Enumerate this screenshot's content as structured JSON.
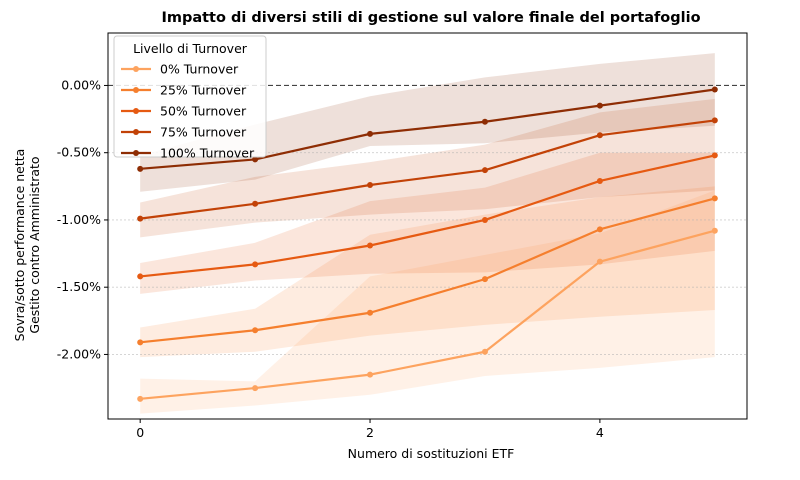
{
  "chart_data": {
    "type": "line",
    "title": "Impatto di diversi stili di gestione sul valore finale del portafoglio",
    "xlabel": "Numero di sostituzioni ETF",
    "ylabel_lines": [
      "Sovra/sotto performance netta",
      "Gestito contro Amministrato"
    ],
    "x": [
      0,
      1,
      2,
      3,
      4,
      5
    ],
    "xlim": [
      -0.28,
      5.28
    ],
    "ylim": [
      -2.48,
      0.39
    ],
    "xticks": [
      0,
      2,
      4
    ],
    "xtick_labels": [
      "0",
      "2",
      "4"
    ],
    "yticks": [
      0,
      -0.5,
      -1.0,
      -1.5,
      -2.0
    ],
    "ytick_labels": [
      "0.00%",
      "-0.50%",
      "-1.00%",
      "-1.50%",
      "-2.00%"
    ],
    "reference_line": 0,
    "legend": {
      "title": "Livello di Turnover",
      "position": "top-left"
    },
    "series": [
      {
        "name": "0% Turnover",
        "color": "#fda35f",
        "values": [
          -2.33,
          -2.25,
          -2.15,
          -1.98,
          -1.31,
          -1.08
        ],
        "lower": [
          -2.44,
          -2.38,
          -2.3,
          -2.16,
          -2.1,
          -2.02
        ],
        "upper": [
          -2.18,
          -2.2,
          -1.42,
          -1.26,
          -1.1,
          -0.78
        ]
      },
      {
        "name": "25% Turnover",
        "color": "#f57f2e",
        "values": [
          -1.91,
          -1.82,
          -1.69,
          -1.44,
          -1.07,
          -0.84
        ],
        "lower": [
          -2.02,
          -1.98,
          -1.86,
          -1.78,
          -1.72,
          -1.67
        ],
        "upper": [
          -1.8,
          -1.66,
          -1.11,
          -0.96,
          -0.83,
          -0.75
        ]
      },
      {
        "name": "50% Turnover",
        "color": "#e65a12",
        "values": [
          -1.42,
          -1.33,
          -1.19,
          -1.0,
          -0.71,
          -0.52
        ],
        "lower": [
          -1.55,
          -1.45,
          -1.4,
          -1.39,
          -1.33,
          -1.23
        ],
        "upper": [
          -1.32,
          -1.17,
          -0.86,
          -0.76,
          -0.5,
          -0.5
        ]
      },
      {
        "name": "75% Turnover",
        "color": "#c24207",
        "values": [
          -0.99,
          -0.88,
          -0.74,
          -0.63,
          -0.37,
          -0.26
        ],
        "lower": [
          -1.13,
          -1.02,
          -0.96,
          -0.92,
          -0.83,
          -0.78
        ],
        "upper": [
          -0.87,
          -0.68,
          -0.57,
          -0.44,
          -0.2,
          -0.1
        ]
      },
      {
        "name": "100% Turnover",
        "color": "#8e2d04",
        "values": [
          -0.62,
          -0.55,
          -0.36,
          -0.27,
          -0.15,
          -0.03
        ],
        "lower": [
          -0.79,
          -0.7,
          -0.45,
          -0.43,
          -0.35,
          -0.3
        ],
        "upper": [
          -0.52,
          -0.29,
          -0.08,
          0.06,
          0.16,
          0.24
        ]
      }
    ]
  }
}
